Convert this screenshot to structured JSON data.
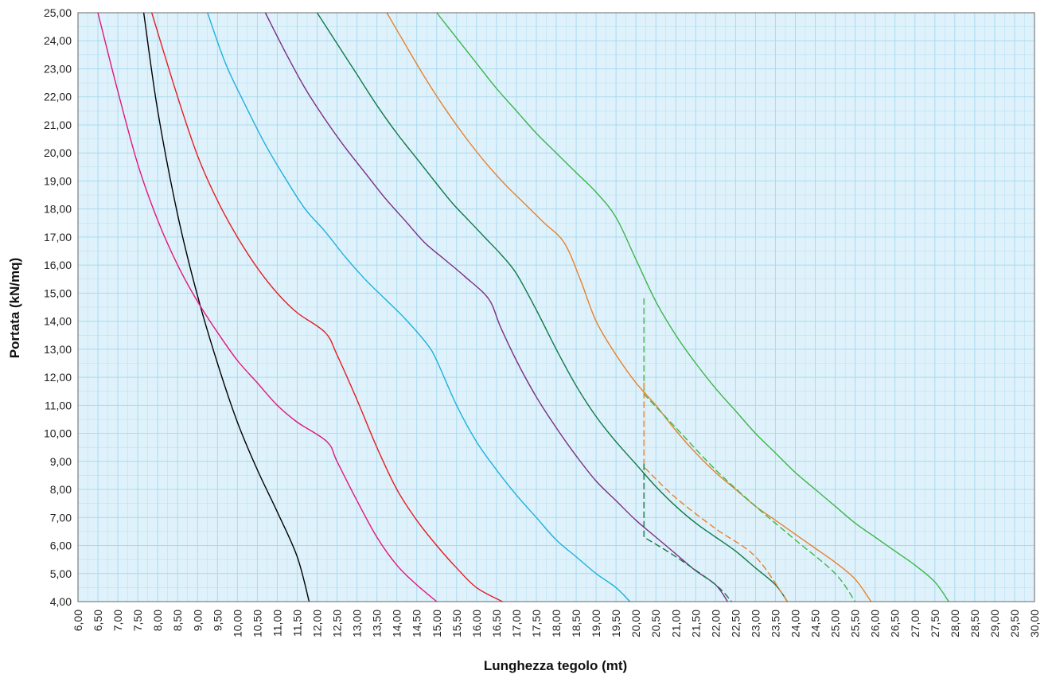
{
  "chart_data": {
    "type": "line",
    "title": "",
    "xlabel": "Lunghezza tegolo (mt)",
    "ylabel": "Portata (kN/mq)",
    "xlim": [
      6.0,
      30.0
    ],
    "ylim": [
      4.0,
      25.0
    ],
    "x_ticks": [
      "6,00",
      "6,50",
      "7,00",
      "7,50",
      "8,00",
      "8,50",
      "9,00",
      "9,50",
      "10,00",
      "10,50",
      "11,00",
      "11,50",
      "12,00",
      "12,50",
      "13,00",
      "13,50",
      "14,00",
      "14,50",
      "15,00",
      "15,50",
      "16,00",
      "16,50",
      "17,00",
      "17,50",
      "18,00",
      "18,50",
      "19,00",
      "19,50",
      "20,00",
      "20,50",
      "21,00",
      "21,50",
      "22,00",
      "22,50",
      "23,00",
      "23,50",
      "24,00",
      "24,50",
      "25,00",
      "25,50",
      "26,00",
      "26,50",
      "27,00",
      "27,50",
      "28,00",
      "28,50",
      "29,00",
      "29,50",
      "30,00"
    ],
    "y_ticks": [
      "4,00",
      "5,00",
      "6,00",
      "7,00",
      "8,00",
      "9,00",
      "10,00",
      "11,00",
      "12,00",
      "13,00",
      "14,00",
      "15,00",
      "16,00",
      "17,00",
      "18,00",
      "19,00",
      "20,00",
      "21,00",
      "22,00",
      "23,00",
      "24,00",
      "25,00"
    ],
    "grid": true,
    "plot_background": "#dff2fb",
    "grid_color": "#a9daf0",
    "series": [
      {
        "color": "#000000",
        "dashed": false,
        "points": [
          [
            7.65,
            25
          ],
          [
            8.0,
            21.5
          ],
          [
            8.5,
            17.8
          ],
          [
            9.0,
            14.9
          ],
          [
            9.5,
            12.5
          ],
          [
            10.0,
            10.4
          ],
          [
            10.5,
            8.7
          ],
          [
            11.0,
            7.2
          ],
          [
            11.5,
            5.6
          ],
          [
            11.8,
            4.0
          ]
        ]
      },
      {
        "color": "#e0157f",
        "dashed": false,
        "points": [
          [
            6.5,
            25
          ],
          [
            7.0,
            22.2
          ],
          [
            7.5,
            19.6
          ],
          [
            8.0,
            17.6
          ],
          [
            8.5,
            16.0
          ],
          [
            9.0,
            14.7
          ],
          [
            9.5,
            13.6
          ],
          [
            10.0,
            12.6
          ],
          [
            10.5,
            11.8
          ],
          [
            11.0,
            11.0
          ],
          [
            11.5,
            10.4
          ],
          [
            12.25,
            9.7
          ],
          [
            12.5,
            9.0
          ],
          [
            13.0,
            7.6
          ],
          [
            13.5,
            6.3
          ],
          [
            14.0,
            5.3
          ],
          [
            14.5,
            4.6
          ],
          [
            15.0,
            4.0
          ]
        ]
      },
      {
        "color": "#e31e24",
        "dashed": false,
        "points": [
          [
            7.85,
            25
          ],
          [
            8.5,
            22.0
          ],
          [
            9.0,
            19.9
          ],
          [
            9.5,
            18.3
          ],
          [
            10.0,
            17.0
          ],
          [
            10.5,
            15.9
          ],
          [
            11.0,
            15.0
          ],
          [
            11.5,
            14.3
          ],
          [
            12.2,
            13.6
          ],
          [
            12.5,
            12.8
          ],
          [
            13.0,
            11.2
          ],
          [
            13.5,
            9.5
          ],
          [
            14.0,
            8.0
          ],
          [
            14.5,
            6.9
          ],
          [
            15.0,
            6.0
          ],
          [
            15.5,
            5.2
          ],
          [
            16.0,
            4.5
          ],
          [
            16.65,
            4.0
          ]
        ]
      },
      {
        "color": "#1cb1dc",
        "dashed": false,
        "points": [
          [
            9.25,
            25
          ],
          [
            9.7,
            23.2
          ],
          [
            10.2,
            21.7
          ],
          [
            10.7,
            20.3
          ],
          [
            11.2,
            19.1
          ],
          [
            11.7,
            18.0
          ],
          [
            12.2,
            17.2
          ],
          [
            12.7,
            16.3
          ],
          [
            13.2,
            15.5
          ],
          [
            13.7,
            14.8
          ],
          [
            14.2,
            14.1
          ],
          [
            14.75,
            13.2
          ],
          [
            15.0,
            12.6
          ],
          [
            15.5,
            11.0
          ],
          [
            16.0,
            9.7
          ],
          [
            16.5,
            8.7
          ],
          [
            17.0,
            7.8
          ],
          [
            17.5,
            7.0
          ],
          [
            18.0,
            6.2
          ],
          [
            18.5,
            5.6
          ],
          [
            19.0,
            5.0
          ],
          [
            19.5,
            4.5
          ],
          [
            19.85,
            4.0
          ]
        ]
      },
      {
        "color": "#7b2d86",
        "dashed": false,
        "points": [
          [
            10.7,
            25
          ],
          [
            11.2,
            23.6
          ],
          [
            11.7,
            22.3
          ],
          [
            12.2,
            21.2
          ],
          [
            12.7,
            20.2
          ],
          [
            13.2,
            19.3
          ],
          [
            13.7,
            18.4
          ],
          [
            14.2,
            17.6
          ],
          [
            14.7,
            16.8
          ],
          [
            15.2,
            16.2
          ],
          [
            15.7,
            15.6
          ],
          [
            16.3,
            14.8
          ],
          [
            16.6,
            13.8
          ],
          [
            17.0,
            12.6
          ],
          [
            17.5,
            11.3
          ],
          [
            18.0,
            10.2
          ],
          [
            18.5,
            9.2
          ],
          [
            19.0,
            8.3
          ],
          [
            19.5,
            7.6
          ],
          [
            20.0,
            6.9
          ],
          [
            20.5,
            6.3
          ],
          [
            21.0,
            5.7
          ],
          [
            21.5,
            5.1
          ],
          [
            22.0,
            4.6
          ],
          [
            22.3,
            4.0
          ]
        ]
      },
      {
        "color": "#0f7a45",
        "dashed": false,
        "points": [
          [
            12.0,
            25
          ],
          [
            12.5,
            23.9
          ],
          [
            13.0,
            22.8
          ],
          [
            13.5,
            21.7
          ],
          [
            14.0,
            20.7
          ],
          [
            14.5,
            19.8
          ],
          [
            15.0,
            18.9
          ],
          [
            15.4,
            18.2
          ],
          [
            15.8,
            17.6
          ],
          [
            16.2,
            17.0
          ],
          [
            16.6,
            16.4
          ],
          [
            17.0,
            15.7
          ],
          [
            17.5,
            14.4
          ],
          [
            18.0,
            13.0
          ],
          [
            18.5,
            11.7
          ],
          [
            19.0,
            10.6
          ],
          [
            19.5,
            9.7
          ],
          [
            20.0,
            8.9
          ],
          [
            20.5,
            8.1
          ],
          [
            21.0,
            7.4
          ],
          [
            21.5,
            6.8
          ],
          [
            22.0,
            6.3
          ],
          [
            22.5,
            5.8
          ],
          [
            23.0,
            5.2
          ],
          [
            23.5,
            4.6
          ],
          [
            23.8,
            4.0
          ]
        ]
      },
      {
        "color": "#e8812b",
        "dashed": false,
        "points": [
          [
            13.75,
            25
          ],
          [
            14.2,
            23.9
          ],
          [
            14.7,
            22.7
          ],
          [
            15.2,
            21.6
          ],
          [
            15.7,
            20.6
          ],
          [
            16.2,
            19.7
          ],
          [
            16.7,
            18.9
          ],
          [
            17.2,
            18.2
          ],
          [
            17.7,
            17.5
          ],
          [
            18.2,
            16.8
          ],
          [
            18.6,
            15.5
          ],
          [
            19.0,
            14.0
          ],
          [
            19.5,
            12.8
          ],
          [
            20.0,
            11.8
          ],
          [
            20.5,
            11.0
          ],
          [
            21.0,
            10.1
          ],
          [
            21.5,
            9.3
          ],
          [
            22.0,
            8.6
          ],
          [
            22.5,
            8.0
          ],
          [
            23.0,
            7.4
          ],
          [
            23.5,
            6.9
          ],
          [
            24.0,
            6.4
          ],
          [
            24.5,
            5.9
          ],
          [
            25.0,
            5.4
          ],
          [
            25.5,
            4.8
          ],
          [
            25.9,
            4.0
          ]
        ]
      },
      {
        "color": "#3cb54a",
        "dashed": false,
        "points": [
          [
            15.0,
            25
          ],
          [
            15.5,
            24.1
          ],
          [
            16.0,
            23.2
          ],
          [
            16.5,
            22.3
          ],
          [
            17.0,
            21.5
          ],
          [
            17.5,
            20.7
          ],
          [
            18.0,
            20.0
          ],
          [
            18.5,
            19.3
          ],
          [
            19.0,
            18.6
          ],
          [
            19.5,
            17.7
          ],
          [
            20.0,
            16.2
          ],
          [
            20.5,
            14.7
          ],
          [
            21.0,
            13.5
          ],
          [
            21.5,
            12.5
          ],
          [
            22.0,
            11.6
          ],
          [
            22.5,
            10.8
          ],
          [
            23.0,
            10.0
          ],
          [
            23.5,
            9.3
          ],
          [
            24.0,
            8.6
          ],
          [
            24.5,
            8.0
          ],
          [
            25.0,
            7.4
          ],
          [
            25.5,
            6.8
          ],
          [
            26.0,
            6.3
          ],
          [
            26.5,
            5.8
          ],
          [
            27.0,
            5.3
          ],
          [
            27.5,
            4.7
          ],
          [
            27.85,
            4.0
          ]
        ]
      },
      {
        "color": "#3cb54a",
        "dashed": true,
        "points": [
          [
            20.2,
            14.8
          ],
          [
            20.2,
            11.4
          ],
          [
            21.0,
            10.2
          ],
          [
            22.0,
            8.7
          ],
          [
            23.0,
            7.4
          ],
          [
            24.0,
            6.2
          ],
          [
            25.0,
            5.0
          ],
          [
            25.5,
            4.0
          ]
        ]
      },
      {
        "color": "#e8812b",
        "dashed": true,
        "points": [
          [
            20.2,
            11.8
          ],
          [
            20.2,
            8.8
          ],
          [
            21.0,
            7.7
          ],
          [
            22.0,
            6.6
          ],
          [
            23.0,
            5.6
          ],
          [
            23.8,
            4.0
          ]
        ]
      },
      {
        "color": "#0f7a45",
        "dashed": true,
        "points": [
          [
            20.2,
            8.9
          ],
          [
            20.2,
            6.3
          ],
          [
            21.0,
            5.6
          ],
          [
            22.0,
            4.6
          ],
          [
            22.4,
            4.0
          ]
        ]
      }
    ]
  }
}
